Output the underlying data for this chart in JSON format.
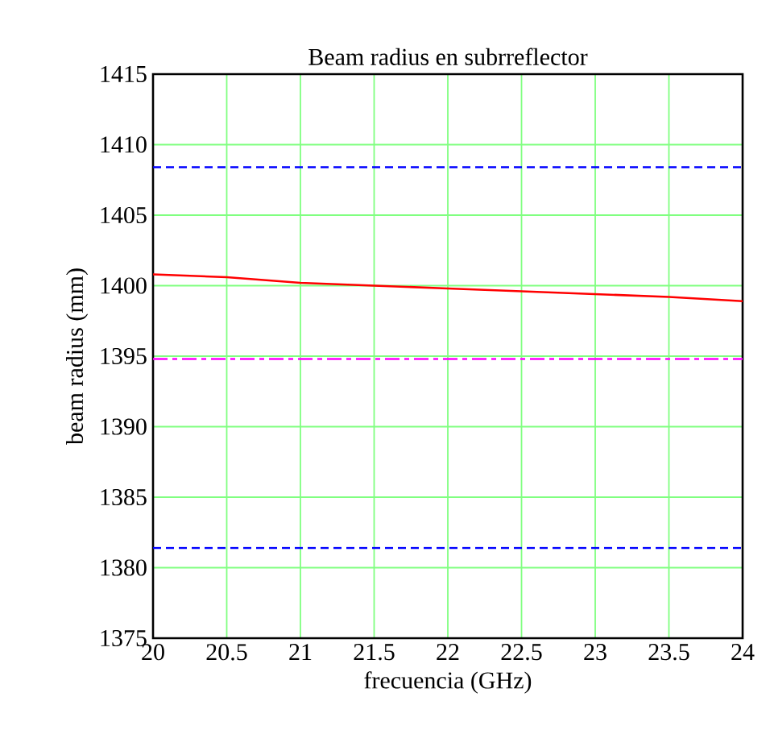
{
  "chart_data": {
    "type": "line",
    "title": "Beam radius en subrreflector",
    "xlabel": "frecuencia (GHz)",
    "ylabel": "beam radius (mm)",
    "x": [
      20,
      20.5,
      21,
      21.5,
      22,
      22.5,
      23,
      23.5,
      24
    ],
    "series": [
      {
        "color": "#ff0000",
        "values": [
          1400.8,
          1400.6,
          1400.2,
          1400.0,
          1399.8,
          1399.6,
          1399.4,
          1399.2,
          1398.9
        ]
      }
    ],
    "xlim": [
      20,
      24
    ],
    "ylim": [
      1375,
      1415
    ],
    "xticks": [
      20,
      20.5,
      21,
      21.5,
      22,
      22.5,
      23,
      23.5,
      24
    ],
    "yticks": [
      1375,
      1380,
      1385,
      1390,
      1395,
      1400,
      1405,
      1410,
      1415
    ],
    "ref_lines": [
      {
        "axis": "y",
        "value": 1408.4,
        "color": "#0000ff",
        "line_style": "dashed"
      },
      {
        "axis": "y",
        "value": 1394.8,
        "color": "#ff00ff",
        "line_style": "dashdot"
      },
      {
        "axis": "y",
        "value": 1381.4,
        "color": "#0000ff",
        "line_style": "dashed"
      }
    ],
    "grid": true,
    "marker": "none",
    "line_style": "solid"
  }
}
